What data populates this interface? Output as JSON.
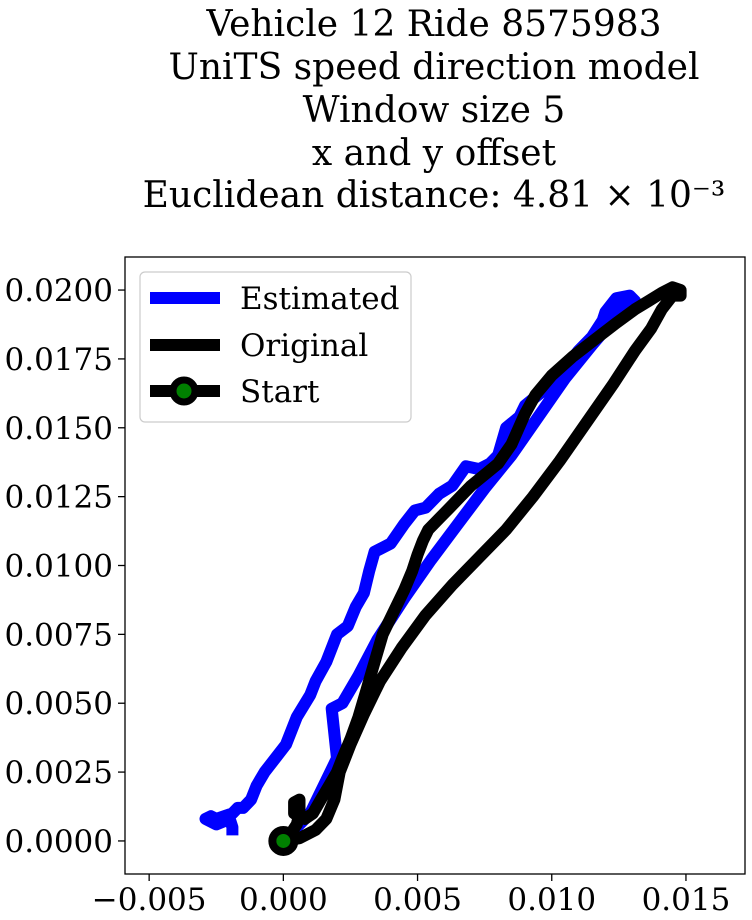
{
  "chart_data": {
    "type": "line",
    "title_lines": [
      "Vehicle 12 Ride 8575983",
      "UniTS speed direction model",
      "Window size 5",
      "x and y offset",
      "Euclidean distance: 4.81 × 10⁻³"
    ],
    "xlabel": "",
    "ylabel": "",
    "xlim": [
      -0.0059,
      0.0172
    ],
    "ylim": [
      -0.0012,
      0.0212
    ],
    "x_ticks": [
      {
        "value": -0.005,
        "label": "−0.005"
      },
      {
        "value": 0.0,
        "label": "0.000"
      },
      {
        "value": 0.005,
        "label": "0.005"
      },
      {
        "value": 0.01,
        "label": "0.010"
      },
      {
        "value": 0.015,
        "label": "0.015"
      }
    ],
    "y_ticks": [
      {
        "value": 0.0,
        "label": "0.0000"
      },
      {
        "value": 0.0025,
        "label": "0.0025"
      },
      {
        "value": 0.005,
        "label": "0.0050"
      },
      {
        "value": 0.0075,
        "label": "0.0075"
      },
      {
        "value": 0.01,
        "label": "0.0100"
      },
      {
        "value": 0.0125,
        "label": "0.0125"
      },
      {
        "value": 0.015,
        "label": "0.0150"
      },
      {
        "value": 0.0175,
        "label": "0.0175"
      },
      {
        "value": 0.02,
        "label": "0.0200"
      }
    ],
    "grid": false,
    "legend_position": "top-left",
    "series": [
      {
        "name": "Estimated",
        "color": "#0000ff",
        "x": [
          0.0,
          0.0005,
          0.001,
          0.0015,
          0.002,
          0.0018,
          0.0022,
          0.0028,
          0.0035,
          0.0045,
          0.0055,
          0.0065,
          0.0075,
          0.0085,
          0.0095,
          0.0105,
          0.0115,
          0.0122,
          0.0127,
          0.013,
          0.0131,
          0.0129,
          0.0124,
          0.012,
          0.0119,
          0.0115,
          0.011,
          0.0105,
          0.01,
          0.0095,
          0.009,
          0.0088,
          0.0083,
          0.008,
          0.0077,
          0.0073,
          0.0068,
          0.0063,
          0.0058,
          0.0053,
          0.0049,
          0.0045,
          0.004,
          0.0036,
          0.0034,
          0.0032,
          0.003,
          0.0027,
          0.0024,
          0.002,
          0.0016,
          0.0012,
          0.001,
          0.0005,
          0.0001,
          -0.0003,
          -0.0007,
          -0.001,
          -0.0012,
          -0.0015,
          -0.0017,
          -0.0019,
          -0.0022,
          -0.0025,
          -0.0027,
          -0.0029,
          -0.0025,
          -0.002,
          -0.0019,
          -0.0019
        ],
        "y": [
          0.0,
          0.0005,
          0.001,
          0.002,
          0.003,
          0.0048,
          0.005,
          0.006,
          0.0073,
          0.0088,
          0.0102,
          0.0115,
          0.0128,
          0.014,
          0.0154,
          0.0168,
          0.018,
          0.0188,
          0.0194,
          0.0197,
          0.0196,
          0.0198,
          0.0197,
          0.0192,
          0.0189,
          0.0183,
          0.0178,
          0.0172,
          0.0166,
          0.0162,
          0.0158,
          0.0154,
          0.015,
          0.014,
          0.0137,
          0.0135,
          0.0136,
          0.0129,
          0.0126,
          0.0121,
          0.012,
          0.0115,
          0.0108,
          0.0106,
          0.0105,
          0.0098,
          0.009,
          0.0085,
          0.0078,
          0.0075,
          0.0065,
          0.0058,
          0.0053,
          0.0045,
          0.0035,
          0.003,
          0.0025,
          0.002,
          0.0015,
          0.0012,
          0.0012,
          0.001,
          0.0009,
          0.0008,
          0.0009,
          0.0008,
          0.0006,
          0.0008,
          0.0005,
          0.0002
        ]
      },
      {
        "name": "Original",
        "color": "#000000",
        "x": [
          0.0,
          0.0006,
          0.0012,
          0.0016,
          0.0019,
          0.0021,
          0.0025,
          0.003,
          0.0036,
          0.0044,
          0.0053,
          0.0063,
          0.0073,
          0.0083,
          0.0093,
          0.0103,
          0.0113,
          0.0123,
          0.0131,
          0.0137,
          0.0141,
          0.0145,
          0.0148,
          0.0148,
          0.0145,
          0.0141,
          0.0136,
          0.0131,
          0.0124,
          0.0116,
          0.0108,
          0.01,
          0.0094,
          0.009,
          0.0085,
          0.008,
          0.0075,
          0.007,
          0.0066,
          0.0062,
          0.0058,
          0.0054,
          0.0052,
          0.005,
          0.0048,
          0.0045,
          0.0041,
          0.0037,
          0.0034,
          0.0031,
          0.0028,
          0.0025,
          0.0022,
          0.002,
          0.0017,
          0.0014,
          0.0011,
          0.0008,
          0.0006,
          0.0004,
          0.0004,
          0.0006,
          0.0006,
          0.0005,
          0.0003
        ],
        "y": [
          0.0,
          0.0001,
          0.0004,
          0.0008,
          0.0015,
          0.0025,
          0.0035,
          0.0046,
          0.0058,
          0.007,
          0.0082,
          0.0093,
          0.0103,
          0.0113,
          0.0125,
          0.0138,
          0.0152,
          0.0166,
          0.0178,
          0.0186,
          0.0193,
          0.0198,
          0.0198,
          0.02,
          0.0201,
          0.0199,
          0.0196,
          0.0193,
          0.0188,
          0.0182,
          0.0176,
          0.0169,
          0.0162,
          0.0155,
          0.0144,
          0.0137,
          0.0133,
          0.0129,
          0.0125,
          0.0121,
          0.0117,
          0.0113,
          0.0109,
          0.0104,
          0.0098,
          0.0091,
          0.0083,
          0.0075,
          0.0065,
          0.0055,
          0.0045,
          0.0037,
          0.003,
          0.0025,
          0.002,
          0.0015,
          0.001,
          0.0008,
          0.0009,
          0.001,
          0.0014,
          0.0015,
          0.001,
          0.0006,
          0.0003
        ]
      }
    ],
    "start": {
      "name": "Start",
      "x": 0.0,
      "y": 0.0,
      "edge_color": "#000000",
      "face_color": "#008000"
    }
  }
}
